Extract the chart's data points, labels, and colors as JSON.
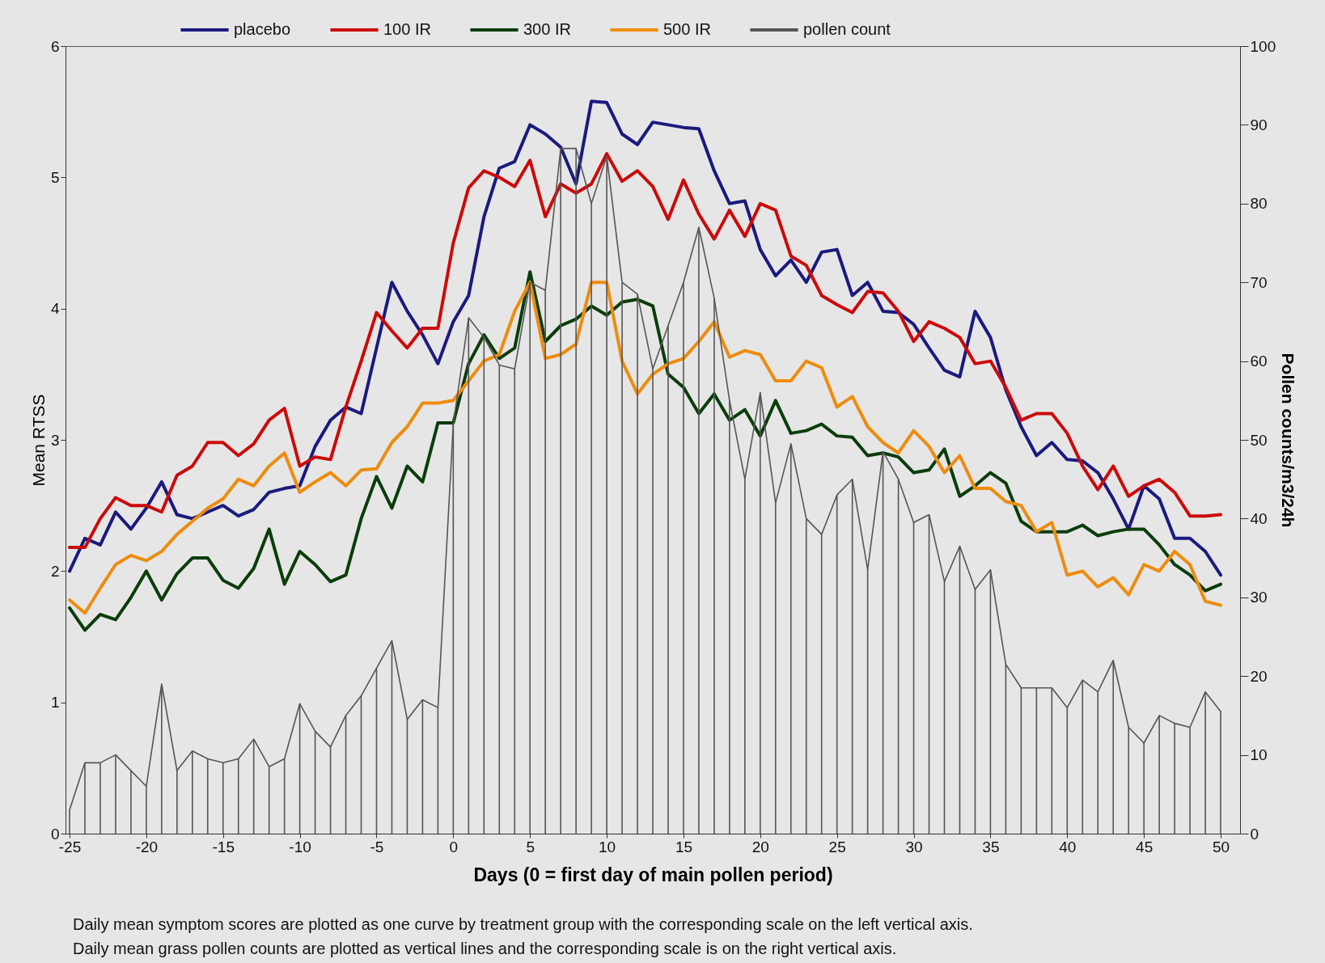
{
  "chart_data": {
    "type": "line",
    "xlabel": "Days (0 = first day of main pollen period)",
    "ylabel": "Mean RTSS",
    "y2label": "Pollen counts/m3/24h",
    "x": [
      -25,
      -24,
      -23,
      -22,
      -21,
      -20,
      -19,
      -18,
      -17,
      -16,
      -15,
      -14,
      -13,
      -12,
      -11,
      -10,
      -9,
      -8,
      -7,
      -6,
      -5,
      -4,
      -3,
      -2,
      -1,
      0,
      1,
      2,
      3,
      4,
      5,
      6,
      7,
      8,
      9,
      10,
      11,
      12,
      13,
      14,
      15,
      16,
      17,
      18,
      19,
      20,
      21,
      22,
      23,
      24,
      25,
      26,
      27,
      28,
      29,
      30,
      31,
      32,
      33,
      34,
      35,
      36,
      37,
      38,
      39,
      40,
      41,
      42,
      43,
      44,
      45,
      46,
      47,
      48,
      49,
      50
    ],
    "xlim": [
      -25,
      51
    ],
    "xticks": [
      -25,
      -20,
      -15,
      -10,
      -5,
      0,
      5,
      10,
      15,
      20,
      25,
      30,
      35,
      40,
      45,
      50
    ],
    "ylim": [
      0,
      6
    ],
    "yticks": [
      0,
      1,
      2,
      3,
      4,
      5,
      6
    ],
    "y2lim": [
      0,
      100
    ],
    "y2ticks": [
      0,
      10,
      20,
      30,
      40,
      50,
      60,
      70,
      80,
      90,
      100
    ],
    "grid": false,
    "legend": "top",
    "series": [
      {
        "name": "placebo",
        "color": "#1b1a7e",
        "values": [
          2.0,
          2.25,
          2.2,
          2.45,
          2.32,
          2.48,
          2.68,
          2.43,
          2.4,
          2.45,
          2.5,
          2.42,
          2.47,
          2.6,
          2.63,
          2.65,
          2.95,
          3.15,
          3.25,
          3.2,
          3.7,
          4.2,
          3.98,
          3.8,
          3.58,
          3.9,
          4.1,
          4.7,
          5.07,
          5.12,
          5.4,
          5.33,
          5.23,
          4.95,
          5.58,
          5.57,
          5.33,
          5.25,
          5.42,
          5.4,
          5.38,
          5.37,
          5.05,
          4.8,
          4.82,
          4.45,
          4.25,
          4.37,
          4.2,
          4.43,
          4.45,
          4.1,
          4.2,
          3.98,
          3.97,
          3.88,
          3.7,
          3.53,
          3.48,
          3.98,
          3.78,
          3.38,
          3.1,
          2.88,
          2.98,
          2.85,
          2.84,
          2.75,
          2.55,
          2.32,
          2.65,
          2.55,
          2.25,
          2.25,
          2.15,
          1.97
        ]
      },
      {
        "name": "100 IR",
        "color": "#cc0a0a",
        "values": [
          2.18,
          2.18,
          2.4,
          2.56,
          2.5,
          2.5,
          2.45,
          2.73,
          2.8,
          2.98,
          2.98,
          2.88,
          2.97,
          3.15,
          3.24,
          2.8,
          2.87,
          2.85,
          3.25,
          3.6,
          3.97,
          3.83,
          3.7,
          3.85,
          3.85,
          4.5,
          4.92,
          5.05,
          5.0,
          4.93,
          5.13,
          4.7,
          4.95,
          4.88,
          4.95,
          5.18,
          4.97,
          5.05,
          4.93,
          4.68,
          4.98,
          4.72,
          4.53,
          4.75,
          4.55,
          4.8,
          4.75,
          4.4,
          4.33,
          4.1,
          4.03,
          3.97,
          4.13,
          4.12,
          3.98,
          3.75,
          3.9,
          3.85,
          3.78,
          3.58,
          3.6,
          3.4,
          3.15,
          3.2,
          3.2,
          3.05,
          2.8,
          2.62,
          2.8,
          2.57,
          2.65,
          2.7,
          2.6,
          2.42,
          2.42,
          2.43
        ]
      },
      {
        "name": "300 IR",
        "color": "#0b3d0b",
        "values": [
          1.72,
          1.55,
          1.67,
          1.63,
          1.8,
          2.0,
          1.78,
          1.98,
          2.1,
          2.1,
          1.93,
          1.87,
          2.02,
          2.32,
          1.9,
          2.15,
          2.05,
          1.92,
          1.97,
          2.4,
          2.72,
          2.48,
          2.8,
          2.68,
          3.13,
          3.13,
          3.58,
          3.8,
          3.62,
          3.7,
          4.28,
          3.75,
          3.87,
          3.92,
          4.02,
          3.95,
          4.05,
          4.07,
          4.02,
          3.5,
          3.4,
          3.2,
          3.35,
          3.15,
          3.23,
          3.03,
          3.3,
          3.05,
          3.07,
          3.12,
          3.03,
          3.02,
          2.88,
          2.9,
          2.87,
          2.75,
          2.77,
          2.93,
          2.57,
          2.65,
          2.75,
          2.67,
          2.38,
          2.3,
          2.3,
          2.3,
          2.35,
          2.27,
          2.3,
          2.32,
          2.32,
          2.2,
          2.05,
          1.97,
          1.85,
          1.9
        ]
      },
      {
        "name": "500 IR",
        "color": "#ee8c0e",
        "values": [
          1.78,
          1.68,
          1.87,
          2.05,
          2.12,
          2.08,
          2.15,
          2.28,
          2.38,
          2.48,
          2.55,
          2.7,
          2.65,
          2.8,
          2.9,
          2.6,
          2.68,
          2.75,
          2.65,
          2.77,
          2.78,
          2.98,
          3.1,
          3.28,
          3.28,
          3.3,
          3.45,
          3.6,
          3.65,
          3.98,
          4.2,
          3.62,
          3.65,
          3.73,
          4.2,
          4.2,
          3.6,
          3.35,
          3.5,
          3.58,
          3.62,
          3.75,
          3.9,
          3.63,
          3.68,
          3.65,
          3.45,
          3.45,
          3.6,
          3.55,
          3.25,
          3.33,
          3.1,
          2.98,
          2.9,
          3.07,
          2.95,
          2.75,
          2.88,
          2.63,
          2.63,
          2.53,
          2.5,
          2.3,
          2.37,
          1.97,
          2.0,
          1.88,
          1.95,
          1.82,
          2.05,
          2.0,
          2.15,
          2.05,
          1.77,
          1.74
        ]
      },
      {
        "type": "bar",
        "axis": "y2",
        "color": "#555555",
        "values": [
          3,
          9,
          9,
          10,
          8,
          6,
          19,
          8,
          10.5,
          9.5,
          9,
          9.5,
          12,
          8.5,
          9.5,
          16.5,
          13,
          11,
          15,
          17.5,
          21,
          24.5,
          14.5,
          17,
          16,
          52,
          65.5,
          63,
          59.5,
          59,
          70,
          69,
          87,
          87,
          80,
          86,
          70,
          68.5,
          59,
          64.5,
          70,
          77,
          68,
          55,
          45,
          56,
          42,
          49.5,
          40,
          38,
          43,
          45,
          33.5,
          48.5,
          45,
          39.5,
          40.5,
          32,
          36.5,
          31,
          33.5,
          21.5,
          18.5,
          18.5,
          18.5,
          16,
          19.5,
          18,
          22,
          13.5,
          11.5,
          15,
          14,
          13.5,
          18,
          15.5
        ]
      },
      {
        "name": "pollen count",
        "type": "line",
        "axis": "y2",
        "color": "#555555",
        "values": [
          3,
          9,
          9,
          10,
          8,
          6,
          19,
          8,
          10.5,
          9.5,
          9,
          9.5,
          12,
          8.5,
          9.5,
          16.5,
          13,
          11,
          15,
          17.5,
          21,
          24.5,
          14.5,
          17,
          16,
          52,
          65.5,
          63,
          59.5,
          59,
          70,
          69,
          87,
          87,
          80,
          86,
          70,
          68.5,
          59,
          64.5,
          70,
          77,
          68,
          55,
          45,
          56,
          42,
          49.5,
          40,
          38,
          43,
          45,
          33.5,
          48.5,
          45,
          39.5,
          40.5,
          32,
          36.5,
          31,
          33.5,
          21.5,
          18.5,
          18.5,
          18.5,
          16,
          19.5,
          18,
          22,
          13.5,
          11.5,
          15,
          14,
          13.5,
          18,
          15.5
        ]
      }
    ],
    "annotations": [
      "Daily mean symptom scores are plotted as one curve by treatment group with the corresponding scale on the left vertical axis.",
      "Daily mean grass pollen counts are plotted as vertical lines and the corresponding scale is on the right vertical axis."
    ]
  }
}
